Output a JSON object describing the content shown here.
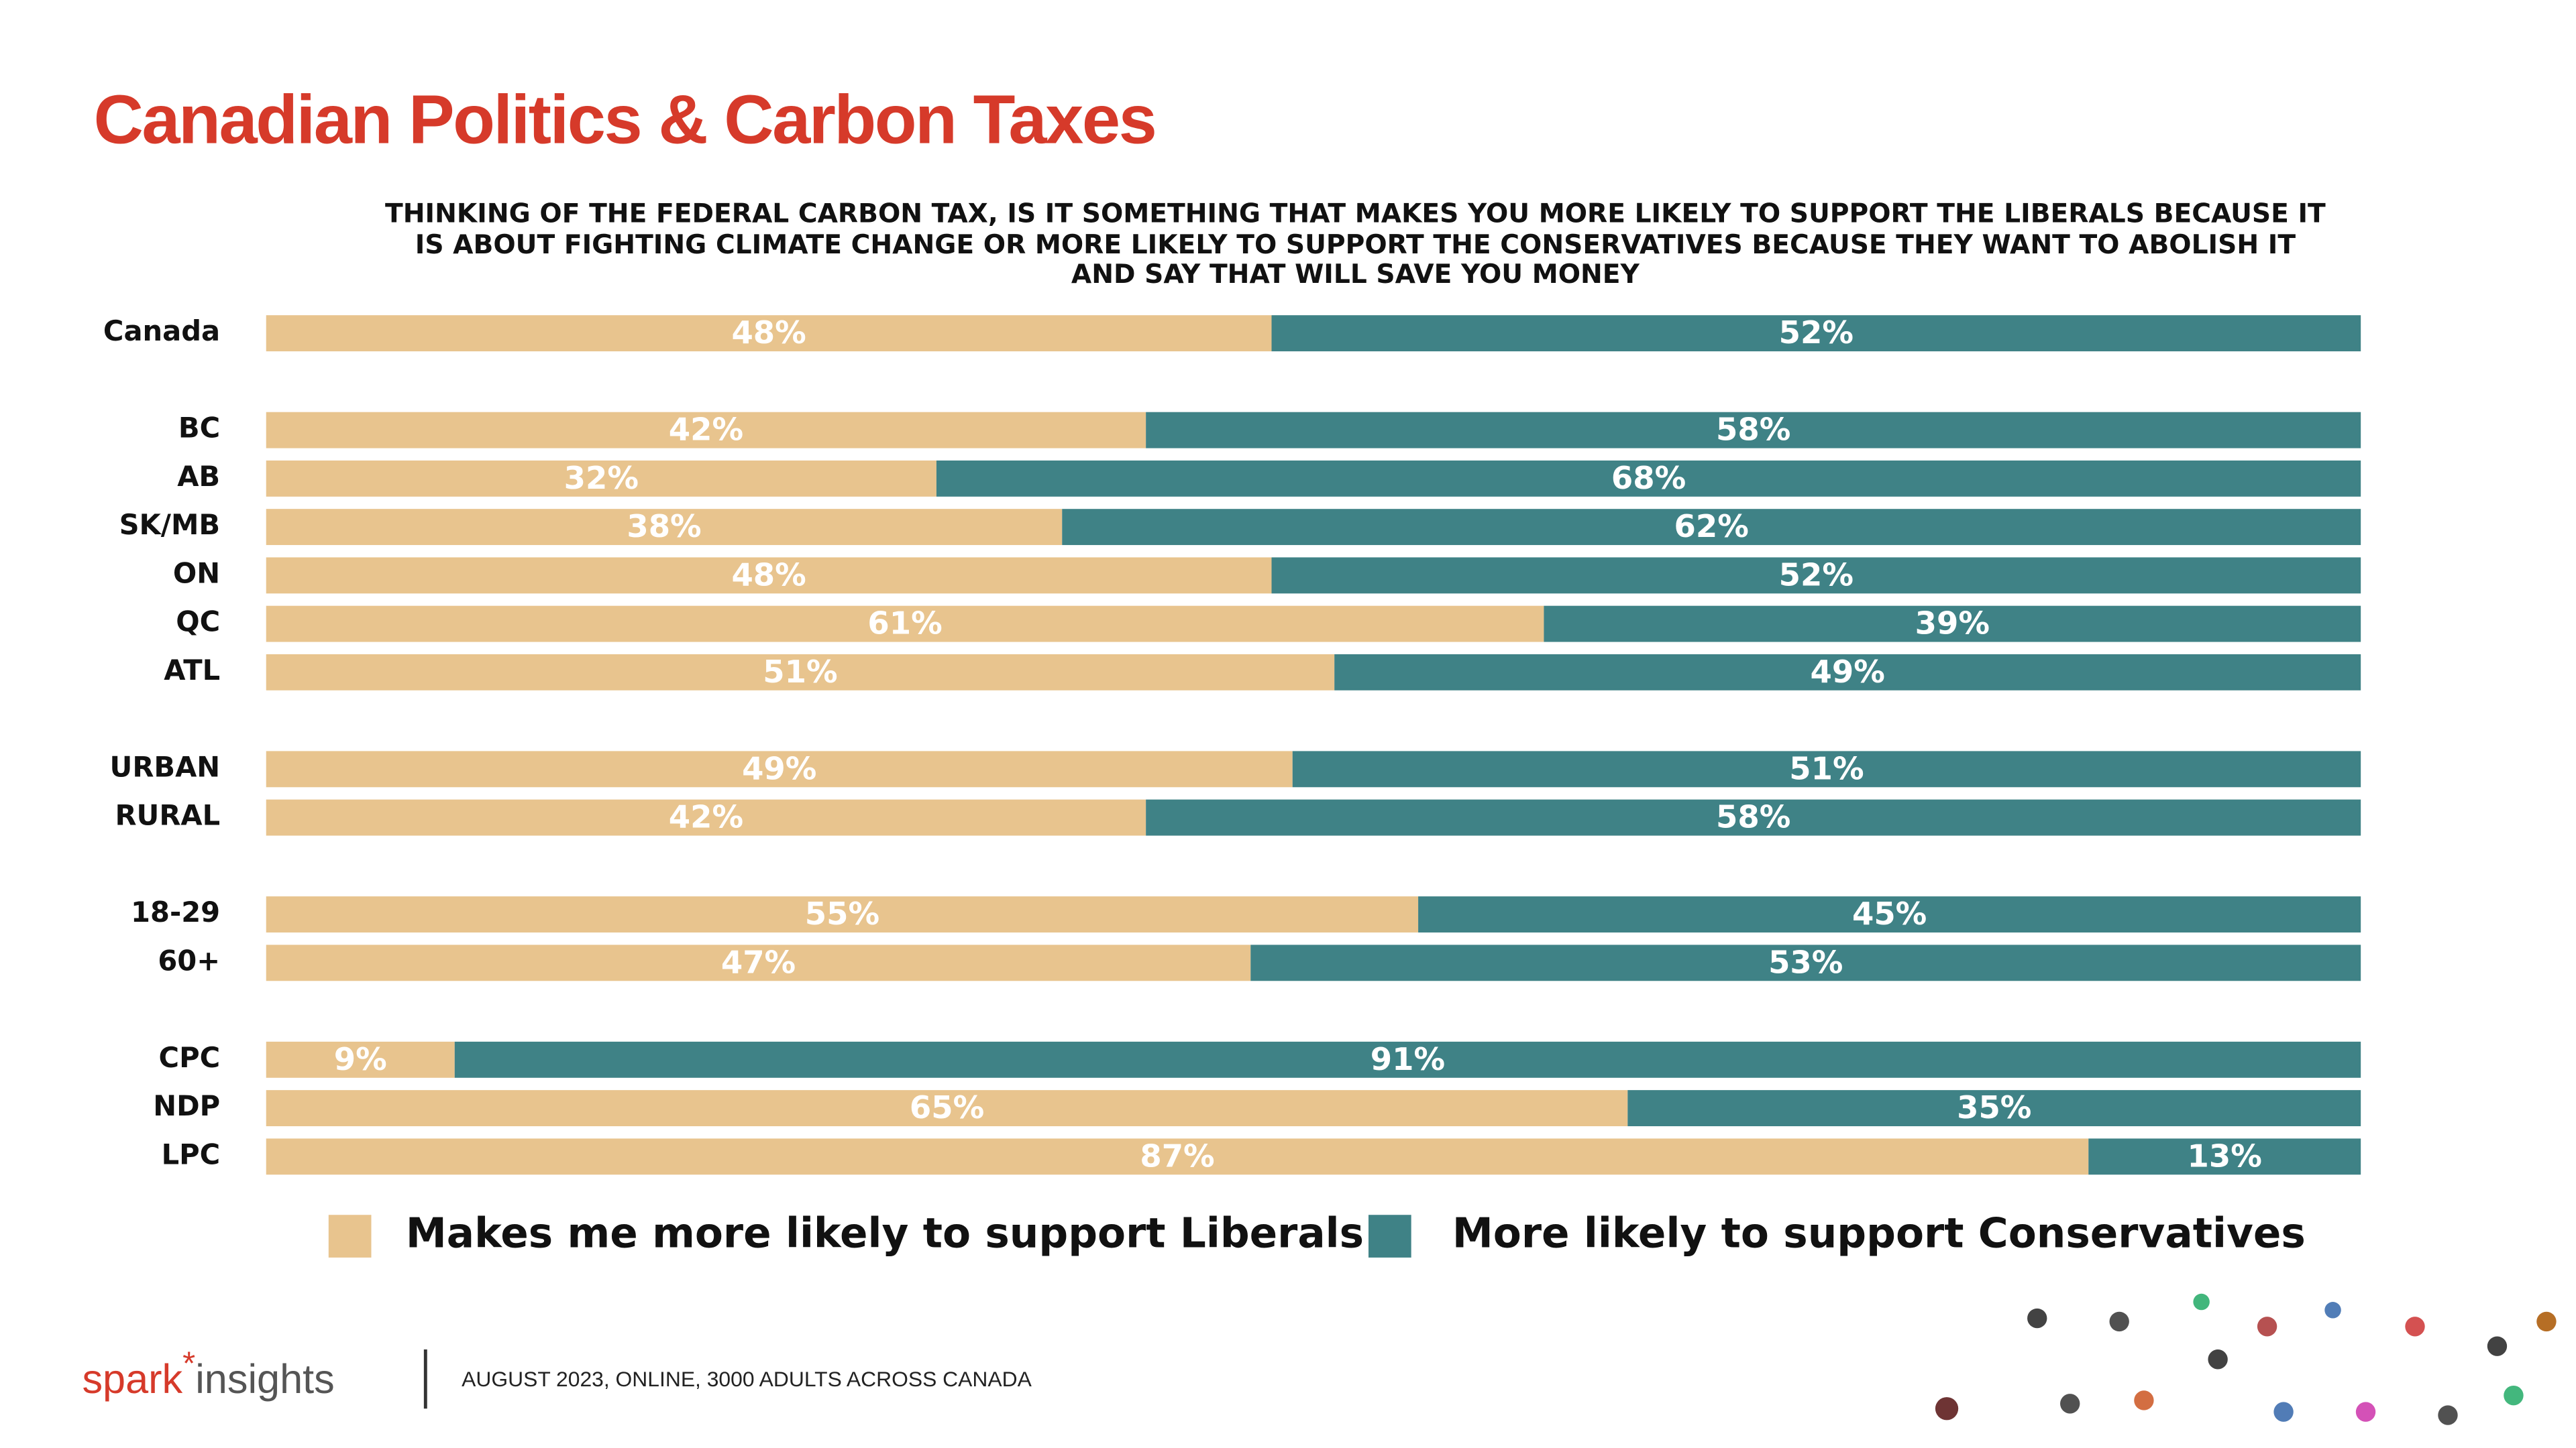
{
  "chart_data": {
    "type": "stacked-barh",
    "title": "Canadian Politics & Carbon Taxes",
    "subtitle": [
      "THINKING OF THE FEDERAL CARBON TAX, IS IT SOMETHING THAT MAKES YOU MORE LIKELY TO SUPPORT THE LIBERALS BECAUSE IT",
      "IS ABOUT FIGHTING CLIMATE CHANGE OR MORE LIKELY TO SUPPORT THE CONSERVATIVES BECAUSE THEY WANT TO ABOLISH IT",
      "AND SAY THAT WILL SAVE YOU MONEY"
    ],
    "categories": [
      "Canada",
      null,
      "BC",
      "AB",
      "SK/MB",
      "ON",
      "QC",
      "ATL",
      null,
      "URBAN",
      "RURAL",
      null,
      "18-29",
      "60+",
      null,
      "CPC",
      "NDP",
      "LPC"
    ],
    "xlim": [
      0,
      100
    ],
    "series": [
      {
        "name": "Makes me more likely to support Liberals",
        "color": "#e8c48e",
        "values": [
          48,
          null,
          42,
          32,
          38,
          48,
          61,
          51,
          null,
          49,
          42,
          null,
          55,
          47,
          null,
          9,
          65,
          87
        ],
        "value_labels": [
          "48%",
          null,
          "42%",
          "32%",
          "38%",
          "48%",
          "61%",
          "51%",
          null,
          "49%",
          "42%",
          null,
          "55%",
          "47%",
          null,
          "9%",
          "65%",
          "87%"
        ]
      },
      {
        "name": "More likely to support Conservatives",
        "color": "#3f8286",
        "values": [
          52,
          null,
          58,
          68,
          62,
          52,
          39,
          49,
          null,
          51,
          58,
          null,
          45,
          53,
          null,
          91,
          35,
          13
        ],
        "value_labels": [
          "52%",
          null,
          "58%",
          "68%",
          "62%",
          "52%",
          "39%",
          "49%",
          null,
          "51%",
          "58%",
          null,
          "45%",
          "53%",
          null,
          "91%",
          "35%",
          "13%"
        ]
      }
    ]
  },
  "footer": {
    "brand": "spark",
    "brand_mark": "*",
    "brand_suffix": "insights",
    "source": "AUGUST 2023, ONLINE, 3000 ADULTS ACROSS CANADA"
  }
}
